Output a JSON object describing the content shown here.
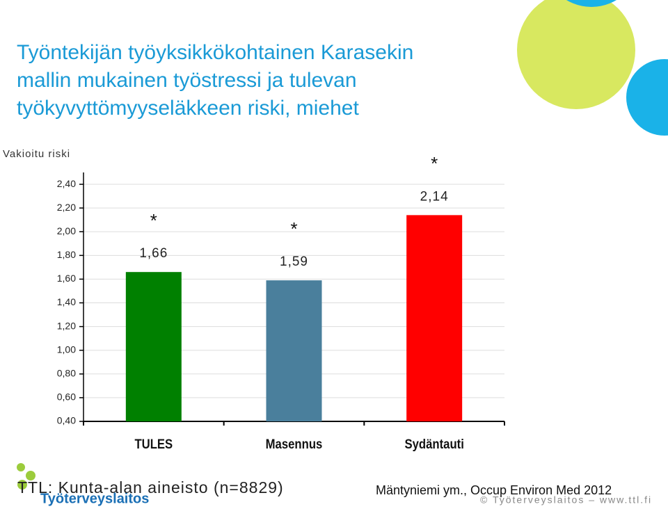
{
  "chart_data": {
    "type": "bar",
    "title": [
      "Työntekijän työyksikkökohtainen Karasekin",
      "mallin mukainen työstressi ja tulevan",
      "työkyvyttömyyseläkkeen riski, miehet"
    ],
    "y_label": "Vakioitu riski",
    "categories": [
      "TULES",
      "Masennus",
      "Sydäntauti"
    ],
    "values": [
      1.66,
      1.59,
      2.14
    ],
    "value_labels": [
      "1,66",
      "1,59",
      "2,14"
    ],
    "significance": [
      "*",
      "*",
      "*"
    ],
    "colors": [
      "#008000",
      "#4a7f9c",
      "#ff0000"
    ],
    "ylim": [
      0.4,
      2.5
    ],
    "yticks": [
      {
        "value": 0.4,
        "label": "0,40"
      },
      {
        "value": 0.6,
        "label": "0,60"
      },
      {
        "value": 0.8,
        "label": "0,80"
      },
      {
        "value": 1.0,
        "label": "1,00"
      },
      {
        "value": 1.2,
        "label": "1,20"
      },
      {
        "value": 1.4,
        "label": "1,40"
      },
      {
        "value": 1.6,
        "label": "1,60"
      },
      {
        "value": 1.8,
        "label": "1,80"
      },
      {
        "value": 2.0,
        "label": "2,00"
      },
      {
        "value": 2.2,
        "label": "2,20"
      },
      {
        "value": 2.4,
        "label": "2,40"
      }
    ],
    "grid": true
  },
  "footer": {
    "source": "TTL: Kunta-alan aineisto (n=8829)",
    "citation": "Mäntyniemi ym., Occup Environ Med 2012",
    "copyright": "© Työterveyslaitos – www.ttl.fi",
    "logo": "Työterveyslaitos"
  }
}
